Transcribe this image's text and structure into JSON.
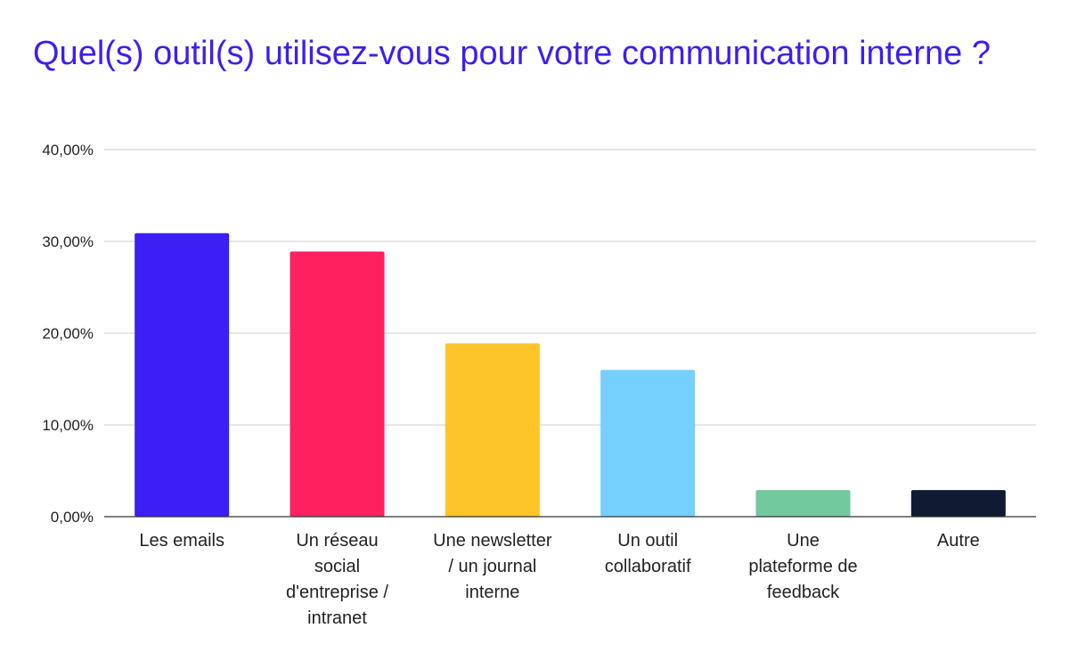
{
  "chart_data": {
    "type": "bar",
    "title": "Quel(s) outil(s) utilisez-vous pour votre communication interne ?",
    "xlabel": "",
    "ylabel": "",
    "ylim": [
      0,
      40
    ],
    "y_ticks": [
      "0,00%",
      "10,00%",
      "20,00%",
      "30,00%",
      "40,00%"
    ],
    "y_tick_values": [
      0,
      10,
      20,
      30,
      40
    ],
    "grid": true,
    "legend": "none",
    "categories": [
      "Les emails",
      "Un réseau social d'entreprise / intranet",
      "Une newsletter / un journal interne",
      "Un outil collaboratif",
      "Une plateforme de feedback",
      "Autre"
    ],
    "category_lines": [
      [
        "Les emails"
      ],
      [
        "Un réseau",
        "social",
        "d'entreprise /",
        "intranet"
      ],
      [
        "Une newsletter",
        "/ un journal",
        "interne"
      ],
      [
        "Un outil",
        "collaboratif"
      ],
      [
        "Une",
        "plateforme de",
        "feedback"
      ],
      [
        "Autre"
      ]
    ],
    "values": [
      30.9,
      28.9,
      18.9,
      16.0,
      2.9,
      2.9
    ],
    "colors": [
      "#3d1ef5",
      "#ff2060",
      "#fdc52a",
      "#75d0fe",
      "#72c99d",
      "#0f1b33"
    ]
  }
}
